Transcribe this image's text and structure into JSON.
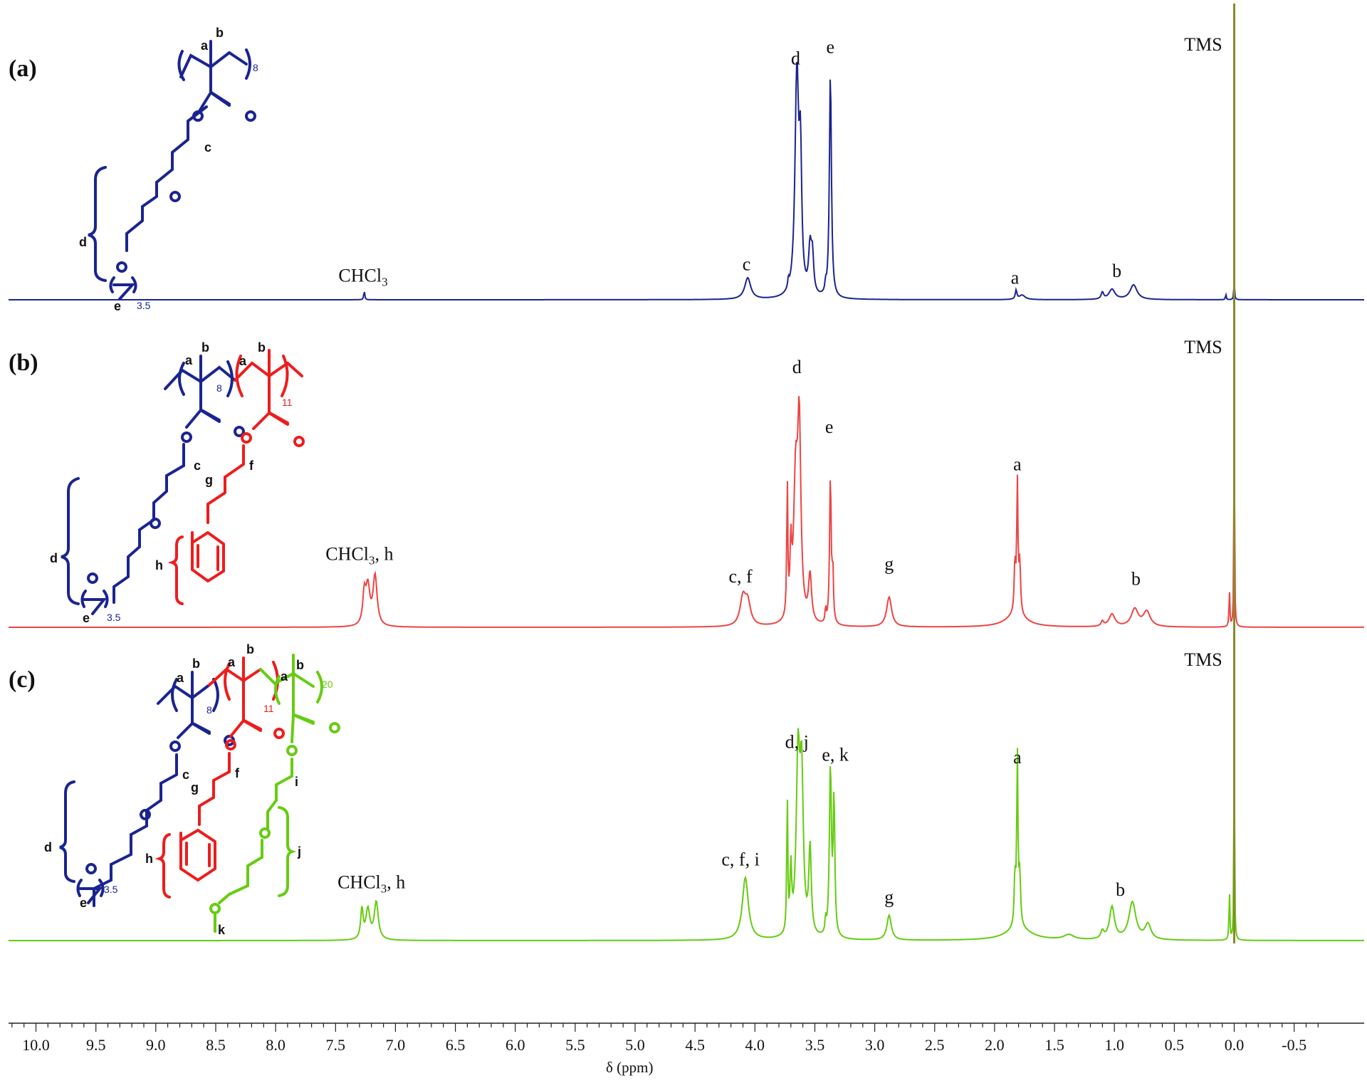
{
  "chart_data": {
    "type": "line",
    "xlabel": "δ (ppm)",
    "xlim": [
      10.4,
      -0.75
    ],
    "x_ticks": [
      "10.0",
      "9.5",
      "9.0",
      "8.5",
      "8.0",
      "7.5",
      "7.0",
      "6.5",
      "6.0",
      "5.5",
      "5.0",
      "4.5",
      "4.0",
      "3.5",
      "3.0",
      "2.5",
      "2.0",
      "1.5",
      "1.0",
      "0.5",
      "0.0",
      "-0.5"
    ],
    "reference_line_ppm": 0.0,
    "series": [
      {
        "panel": "(a)",
        "color": "#1a2490",
        "peaks": [
          {
            "ppm": 4.06,
            "rel": 0.095,
            "w": 0.03
          },
          {
            "ppm": 3.72,
            "rel": 0.04,
            "w": 0.006
          },
          {
            "ppm": 3.65,
            "rel": 1.0,
            "w": 0.018
          },
          {
            "ppm": 3.62,
            "rel": 0.55,
            "w": 0.012
          },
          {
            "ppm": 3.54,
            "rel": 0.2,
            "w": 0.014
          },
          {
            "ppm": 3.52,
            "rel": 0.16,
            "w": 0.012
          },
          {
            "ppm": 3.41,
            "rel": 0.04,
            "w": 0.006
          },
          {
            "ppm": 3.37,
            "rel": 1.0,
            "w": 0.01
          },
          {
            "ppm": 7.26,
            "rel": 0.04,
            "w": 0.005
          },
          {
            "ppm": 1.82,
            "rel": 0.04,
            "w": 0.008
          },
          {
            "ppm": 1.77,
            "rel": 0.02,
            "w": 0.03
          },
          {
            "ppm": 1.1,
            "rel": 0.03,
            "w": 0.012
          },
          {
            "ppm": 1.02,
            "rel": 0.045,
            "w": 0.03
          },
          {
            "ppm": 0.84,
            "rel": 0.065,
            "w": 0.035
          },
          {
            "ppm": 0.07,
            "rel": 0.025,
            "w": 0.004
          },
          {
            "ppm": 0.0,
            "rel": 0.08,
            "w": 0.004
          }
        ],
        "labels": [
          {
            "text": "TMS",
            "ppm": 0.1,
            "rel": 1.1
          },
          {
            "text": "d",
            "ppm": 3.66,
            "rel": 1.04
          },
          {
            "text": "e",
            "ppm": 3.37,
            "rel": 1.09
          },
          {
            "text": "c",
            "ppm": 4.07,
            "rel": 0.13
          },
          {
            "text": "a",
            "ppm": 1.83,
            "rel": 0.07
          },
          {
            "text": "b",
            "ppm": 0.98,
            "rel": 0.1
          },
          {
            "text": "CHCl",
            "sub": "3",
            "ppm": 7.27,
            "rel": 0.08
          }
        ]
      },
      {
        "panel": "(b)",
        "color": "#ee4444",
        "peaks": [
          {
            "ppm": 7.26,
            "rel": 0.12,
            "w": 0.015
          },
          {
            "ppm": 7.23,
            "rel": 0.15,
            "w": 0.02
          },
          {
            "ppm": 7.17,
            "rel": 0.2,
            "w": 0.02
          },
          {
            "ppm": 4.1,
            "rel": 0.11,
            "w": 0.028
          },
          {
            "ppm": 4.06,
            "rel": 0.09,
            "w": 0.028
          },
          {
            "ppm": 3.73,
            "rel": 0.55,
            "w": 0.005
          },
          {
            "ppm": 3.7,
            "rel": 0.25,
            "w": 0.008
          },
          {
            "ppm": 3.66,
            "rel": 0.55,
            "w": 0.02
          },
          {
            "ppm": 3.63,
            "rel": 0.75,
            "w": 0.016
          },
          {
            "ppm": 3.54,
            "rel": 0.19,
            "w": 0.015
          },
          {
            "ppm": 3.41,
            "rel": 0.06,
            "w": 0.005
          },
          {
            "ppm": 3.37,
            "rel": 0.6,
            "w": 0.008
          },
          {
            "ppm": 3.35,
            "rel": 0.2,
            "w": 0.006
          },
          {
            "ppm": 2.88,
            "rel": 0.12,
            "w": 0.025
          },
          {
            "ppm": 1.83,
            "rel": 0.2,
            "w": 0.007
          },
          {
            "ppm": 1.81,
            "rel": 0.52,
            "w": 0.006
          },
          {
            "ppm": 1.79,
            "rel": 0.2,
            "w": 0.008
          },
          {
            "ppm": 1.82,
            "rel": 0.05,
            "w": 0.1
          },
          {
            "ppm": 1.1,
            "rel": 0.02,
            "w": 0.012
          },
          {
            "ppm": 1.02,
            "rel": 0.05,
            "w": 0.03
          },
          {
            "ppm": 0.83,
            "rel": 0.07,
            "w": 0.035
          },
          {
            "ppm": 0.73,
            "rel": 0.06,
            "w": 0.035
          },
          {
            "ppm": 0.04,
            "rel": 0.15,
            "w": 0.004
          },
          {
            "ppm": 0.0,
            "rel": 1.0,
            "w": 0.003
          }
        ],
        "labels": [
          {
            "text": "TMS",
            "ppm": 0.1,
            "rel": 1.1
          },
          {
            "text": "d",
            "ppm": 3.65,
            "rel": 1.02
          },
          {
            "text": "e",
            "ppm": 3.38,
            "rel": 0.78
          },
          {
            "text": "a",
            "ppm": 1.81,
            "rel": 0.63
          },
          {
            "text": "g",
            "ppm": 2.88,
            "rel": 0.23
          },
          {
            "text": "b",
            "ppm": 0.82,
            "rel": 0.17
          },
          {
            "text": "c, f",
            "ppm": 4.12,
            "rel": 0.18
          },
          {
            "text": "CHCl",
            "sub": "3",
            "suffix": ", h",
            "ppm": 7.3,
            "rel": 0.27
          }
        ]
      },
      {
        "panel": "(c)",
        "color": "#66cc11",
        "peaks": [
          {
            "ppm": 7.28,
            "rel": 0.12,
            "w": 0.012
          },
          {
            "ppm": 7.23,
            "rel": 0.12,
            "w": 0.02
          },
          {
            "ppm": 7.16,
            "rel": 0.15,
            "w": 0.02
          },
          {
            "ppm": 4.08,
            "rel": 0.25,
            "w": 0.03
          },
          {
            "ppm": 3.73,
            "rel": 0.55,
            "w": 0.005
          },
          {
            "ppm": 3.7,
            "rel": 0.25,
            "w": 0.008
          },
          {
            "ppm": 3.64,
            "rel": 0.7,
            "w": 0.018
          },
          {
            "ppm": 3.61,
            "rel": 0.6,
            "w": 0.016
          },
          {
            "ppm": 3.54,
            "rel": 0.35,
            "w": 0.012
          },
          {
            "ppm": 3.41,
            "rel": 0.06,
            "w": 0.005
          },
          {
            "ppm": 3.37,
            "rel": 0.68,
            "w": 0.01
          },
          {
            "ppm": 3.34,
            "rel": 0.55,
            "w": 0.008
          },
          {
            "ppm": 2.88,
            "rel": 0.1,
            "w": 0.022
          },
          {
            "ppm": 1.83,
            "rel": 0.2,
            "w": 0.007
          },
          {
            "ppm": 1.81,
            "rel": 0.68,
            "w": 0.006
          },
          {
            "ppm": 1.79,
            "rel": 0.2,
            "w": 0.008
          },
          {
            "ppm": 1.8,
            "rel": 0.05,
            "w": 0.12
          },
          {
            "ppm": 1.38,
            "rel": 0.02,
            "w": 0.05
          },
          {
            "ppm": 1.1,
            "rel": 0.03,
            "w": 0.015
          },
          {
            "ppm": 1.02,
            "rel": 0.13,
            "w": 0.025
          },
          {
            "ppm": 0.85,
            "rel": 0.15,
            "w": 0.035
          },
          {
            "ppm": 0.72,
            "rel": 0.06,
            "w": 0.03
          },
          {
            "ppm": 0.04,
            "rel": 0.2,
            "w": 0.004
          },
          {
            "ppm": 0.0,
            "rel": 1.0,
            "w": 0.003
          }
        ],
        "labels": [
          {
            "text": "TMS",
            "ppm": 0.1,
            "rel": 1.1
          },
          {
            "text": "d, j",
            "ppm": 3.65,
            "rel": 0.77
          },
          {
            "text": "e, k",
            "ppm": 3.33,
            "rel": 0.72
          },
          {
            "text": "a",
            "ppm": 1.81,
            "rel": 0.71
          },
          {
            "text": "c, f, i",
            "ppm": 4.12,
            "rel": 0.3
          },
          {
            "text": "g",
            "ppm": 2.88,
            "rel": 0.15
          },
          {
            "text": "b",
            "ppm": 0.95,
            "rel": 0.18
          },
          {
            "text": "CHCl",
            "sub": "3",
            "suffix": ", h",
            "ppm": 7.2,
            "rel": 0.21
          }
        ]
      }
    ]
  },
  "colors": {
    "blue": "#1a2490",
    "red": "#ee1c1c",
    "green": "#66cc11",
    "tms_line": "#8a8a2a"
  },
  "structures": {
    "a": {
      "atom_labels": [
        "a",
        "b",
        "c",
        "d",
        "e"
      ],
      "repeat": "8",
      "pendant_repeat": "3.5"
    },
    "b": {
      "atom_labels": [
        "a",
        "b",
        "a",
        "b",
        "c",
        "d",
        "e",
        "f",
        "g",
        "h"
      ],
      "repeat_1": "8",
      "repeat_2": "11",
      "pendant_repeat": "3.5"
    },
    "c": {
      "atom_labels": [
        "a",
        "b",
        "a",
        "b",
        "a",
        "b",
        "c",
        "d",
        "e",
        "f",
        "g",
        "h",
        "i",
        "j",
        "k"
      ],
      "repeat_1": "8",
      "repeat_2": "11",
      "repeat_3": "20",
      "pendant_repeat": "3.5"
    }
  }
}
